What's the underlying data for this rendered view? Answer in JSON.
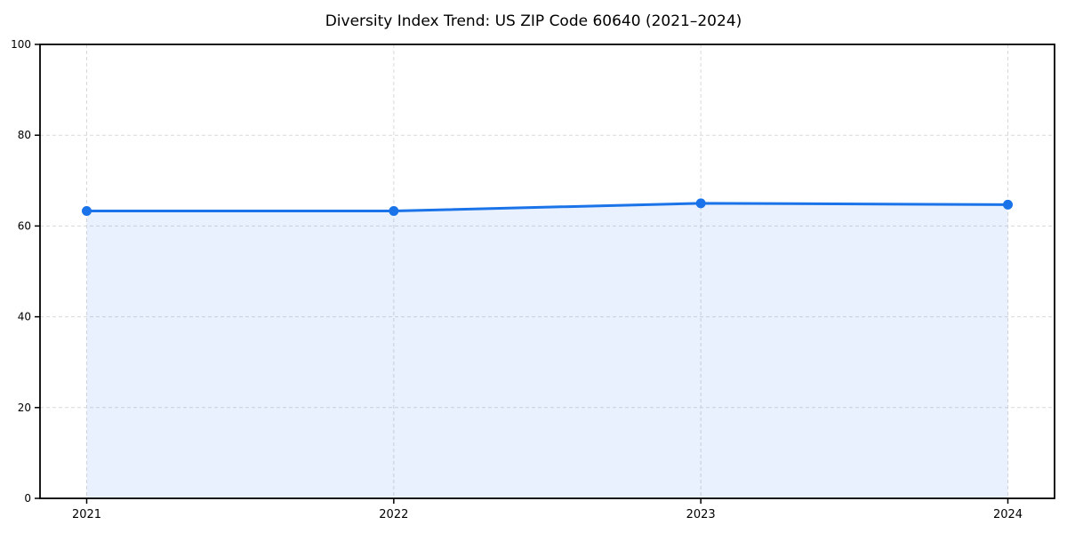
{
  "chart_data": {
    "type": "area",
    "title": "Diversity Index Trend: US ZIP Code 60640 (2021–2024)",
    "categories": [
      "2021",
      "2022",
      "2023",
      "2024"
    ],
    "series": [
      {
        "name": "Diversity Index",
        "values": [
          63.3,
          63.3,
          65.0,
          64.7
        ]
      }
    ],
    "xlabel": "",
    "ylabel": "",
    "ylim": [
      0,
      100
    ],
    "yticks": [
      0,
      20,
      40,
      60,
      80,
      100
    ],
    "grid": true,
    "grid_style": "dashed",
    "legend": false,
    "colors": {
      "line": "#1a73e8",
      "marker": "#1a73e8",
      "fill": "rgba(26,115,232,0.10)",
      "grid": "#d9d9d9",
      "axis": "#000000",
      "background": "#ffffff",
      "text": "#000000"
    }
  }
}
